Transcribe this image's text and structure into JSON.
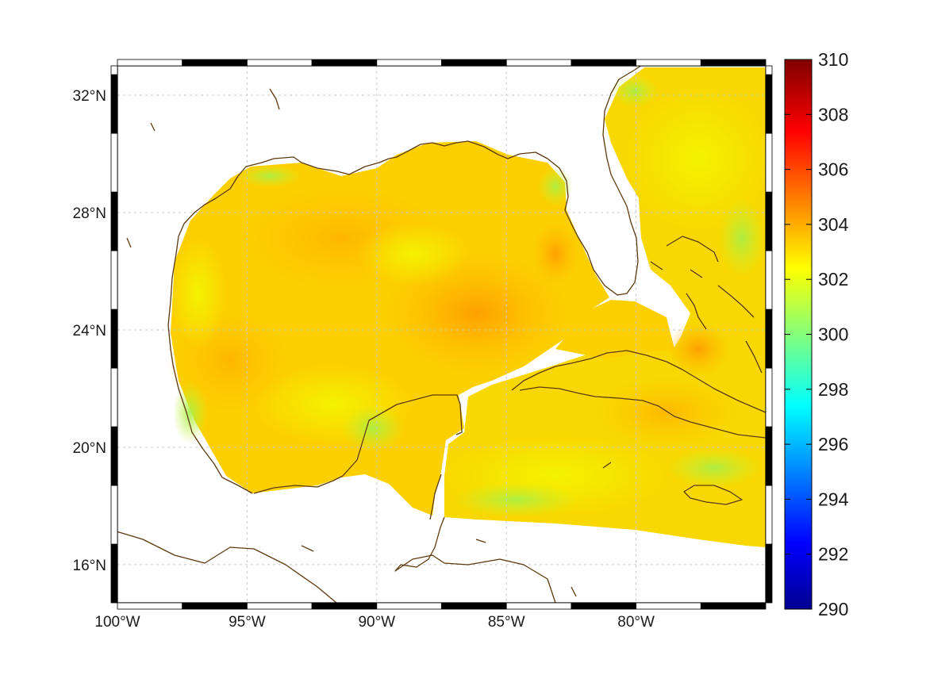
{
  "map": {
    "lon_ticks": [
      "100°W",
      "95°W",
      "90°W",
      "85°W",
      "80°W"
    ],
    "lon_tick_values": [
      -100,
      -95,
      -90,
      -85,
      -80
    ],
    "lat_ticks": [
      "32°N",
      "28°N",
      "24°N",
      "20°N",
      "16°N"
    ],
    "lat_tick_values": [
      32,
      28,
      24,
      20,
      16
    ],
    "lon_range": [
      -100,
      -75
    ],
    "lat_range": [
      14.7,
      33
    ],
    "grid": true,
    "coastline_color": "#5c3a0e"
  },
  "colorbar": {
    "ticks": [
      "310",
      "308",
      "306",
      "304",
      "302",
      "300",
      "298",
      "296",
      "294",
      "292",
      "290"
    ],
    "range": [
      290,
      310
    ],
    "colormap": "jet",
    "placement": "right"
  }
}
